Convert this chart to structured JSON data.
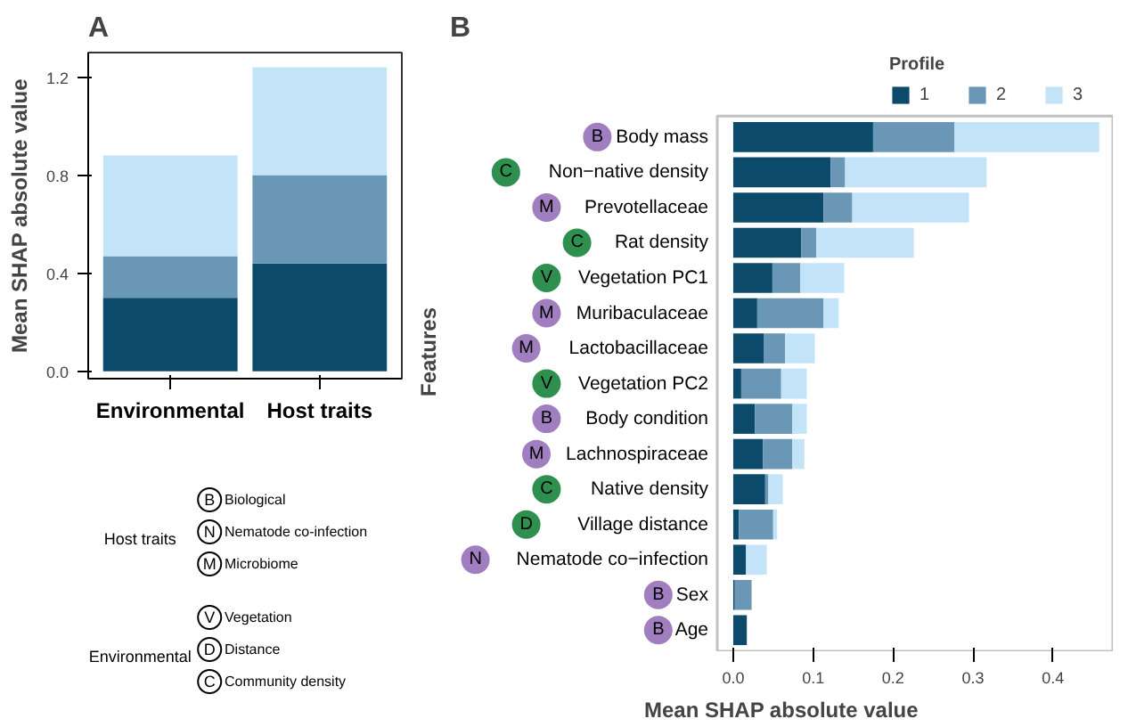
{
  "chart_data": [
    {
      "type": "bar",
      "title": "A",
      "ylabel": "Mean SHAP absolute value",
      "categories": [
        "Environmental",
        "Host traits"
      ],
      "stacked": true,
      "series": [
        {
          "color": "#0b4a6b",
          "values": [
            0.3,
            0.44
          ]
        },
        {
          "color": "#6a97b5",
          "values": [
            0.17,
            0.36
          ]
        },
        {
          "color": "#c3e4f8",
          "values": [
            0.41,
            0.44
          ]
        }
      ],
      "ylim": [
        -0.03,
        1.3
      ],
      "yticks": [
        {
          "value": 0,
          "label": "0.0"
        },
        {
          "value": 0.4,
          "label": "0.4"
        },
        {
          "value": 0.8,
          "label": "0.8"
        },
        {
          "value": 1.2,
          "label": "1.2"
        }
      ]
    },
    {
      "type": "bar",
      "title": "B",
      "orientation": "horizontal",
      "stacked": true,
      "xlabel": "Mean SHAP absolute value",
      "ylabel": "Features",
      "legend": "top",
      "legend_title": "Profile",
      "categories": [
        "Body mass",
        "Non−native density",
        "Prevotellaceae",
        "Rat density",
        "Vegetation PC1",
        "Muribaculaceae",
        "Lactobacillaceae",
        "Vegetation PC2",
        "Body condition",
        "Lachnospiraceae",
        "Native density",
        "Village distance",
        "Nematode co−infection",
        "Sex",
        "Age"
      ],
      "series": [
        {
          "name": "1",
          "color": "#0b4a6b",
          "values": [
            0.175,
            0.122,
            0.113,
            0.085,
            0.049,
            0.03,
            0.038,
            0.01,
            0.027,
            0.037,
            0.04,
            0.007,
            0.016,
            0.002,
            0.017
          ]
        },
        {
          "name": "2",
          "color": "#6a97b5",
          "values": [
            0.102,
            0.018,
            0.036,
            0.019,
            0.035,
            0.083,
            0.027,
            0.05,
            0.047,
            0.037,
            0.004,
            0.043,
            0,
            0.021,
            0
          ]
        },
        {
          "name": "3",
          "color": "#c3e4f8",
          "values": [
            0.181,
            0.177,
            0.146,
            0.122,
            0.055,
            0.019,
            0.037,
            0.032,
            0.018,
            0.015,
            0.018,
            0.005,
            0.026,
            0,
            0
          ]
        }
      ],
      "xlim": [
        -0.02,
        0.475
      ],
      "xticks": [
        {
          "value": 0,
          "label": "0.0"
        },
        0.1,
        0.2,
        0.3,
        0.4
      ],
      "annotations": [
        "B",
        "C",
        "M",
        "C",
        "V",
        "M",
        "M",
        "V",
        "B",
        "M",
        "C",
        "D",
        "N",
        "B",
        "B"
      ]
    },
    {
      "type": "other",
      "annotations": [
        "Host traits",
        "B",
        "Biological",
        "N",
        "Nematode co-infection",
        "M",
        "Microbiome",
        "Environmental",
        "V",
        "Vegetation",
        "D",
        "Distance",
        "C",
        "Community density"
      ]
    }
  ]
}
